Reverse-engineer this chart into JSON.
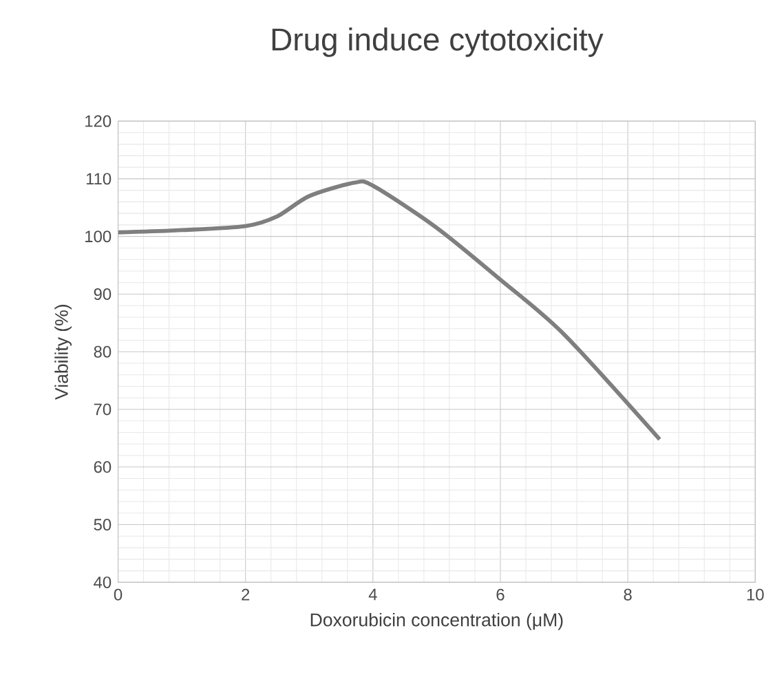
{
  "chart_data": {
    "type": "line",
    "title": "Drug induce cytotoxicity",
    "xlabel": "Doxorubicin concentration (μM)",
    "ylabel": "Viability (%)",
    "x": [
      0,
      1,
      2,
      2.5,
      3,
      3.7,
      4,
      5,
      6,
      7,
      8.5
    ],
    "series": [
      {
        "color": "#7f7f7f",
        "values": [
          100.7,
          101.1,
          101.8,
          103.5,
          107,
          109.3,
          108.8,
          101.5,
          92.5,
          83,
          64.8
        ]
      }
    ],
    "xlim": [
      0,
      10
    ],
    "ylim": [
      40,
      120
    ],
    "xticks": [
      0,
      2,
      4,
      6,
      8,
      10
    ],
    "yticks": [
      40,
      50,
      60,
      70,
      80,
      90,
      100,
      110,
      120
    ],
    "grid": true,
    "marker": "none",
    "line_style": "solid"
  }
}
